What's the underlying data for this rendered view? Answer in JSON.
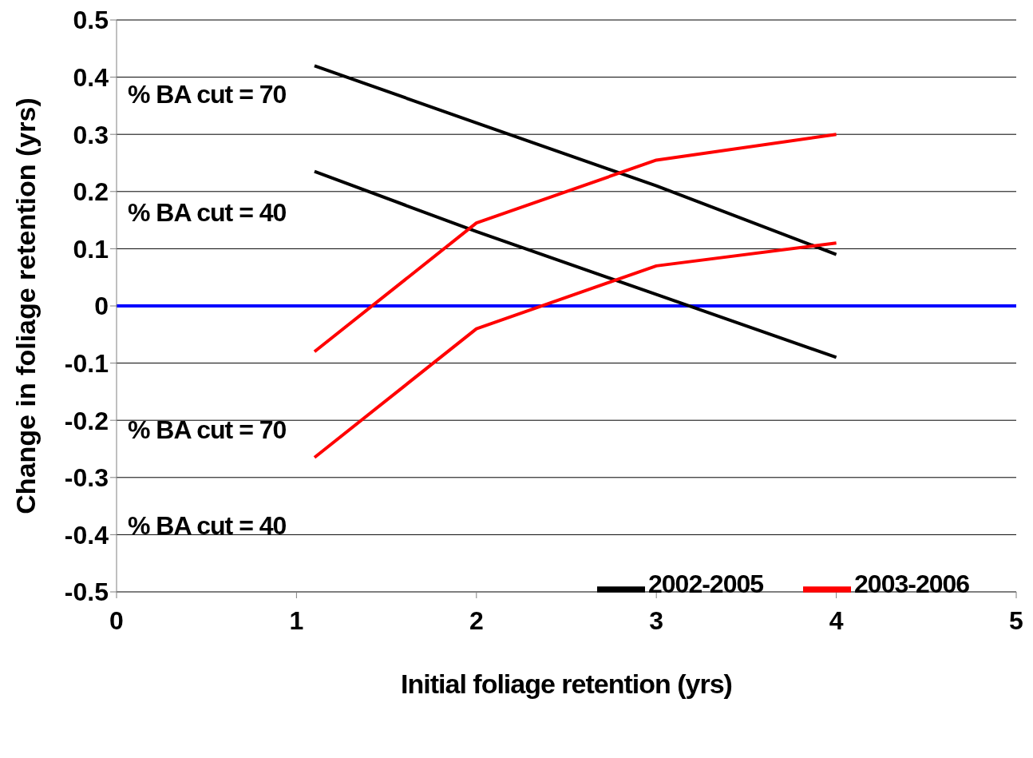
{
  "chart_data": {
    "type": "line",
    "xlabel": "Initial foliage retention (yrs)",
    "ylabel": "Change in foliage retention (yrs)",
    "x": [
      1.1,
      2,
      3,
      4
    ],
    "series": [
      {
        "name": "2002-2005",
        "color": "#000000",
        "values": [
          0.42,
          0.32,
          0.21,
          0.09
        ]
      },
      {
        "color": "#000000",
        "values": [
          0.235,
          0.13,
          0.02,
          -0.09
        ]
      },
      {
        "name": "2003-2006",
        "color": "#ff0000",
        "values": [
          -0.08,
          0.145,
          0.255,
          0.3
        ]
      },
      {
        "color": "#ff0000",
        "values": [
          -0.265,
          -0.04,
          0.07,
          0.11
        ]
      }
    ],
    "xlim": [
      0,
      5
    ],
    "xticks": [
      0,
      1,
      2,
      3,
      4,
      5
    ],
    "ylim": [
      -0.5,
      0.5
    ],
    "yticks": [
      -0.5,
      -0.4,
      -0.3,
      -0.2,
      -0.1,
      0,
      0.1,
      0.2,
      0.3,
      0.4,
      0.5
    ],
    "ref_lines": [
      {
        "axis": "y",
        "value": 0,
        "color": "#0000ff"
      }
    ],
    "annotations": [
      "% BA cut = 70",
      "% BA cut = 40",
      "% BA cut = 70",
      "% BA cut = 40"
    ],
    "grid": "y",
    "legend": "bottom right",
    "marker": "none",
    "line_style": "solid"
  }
}
